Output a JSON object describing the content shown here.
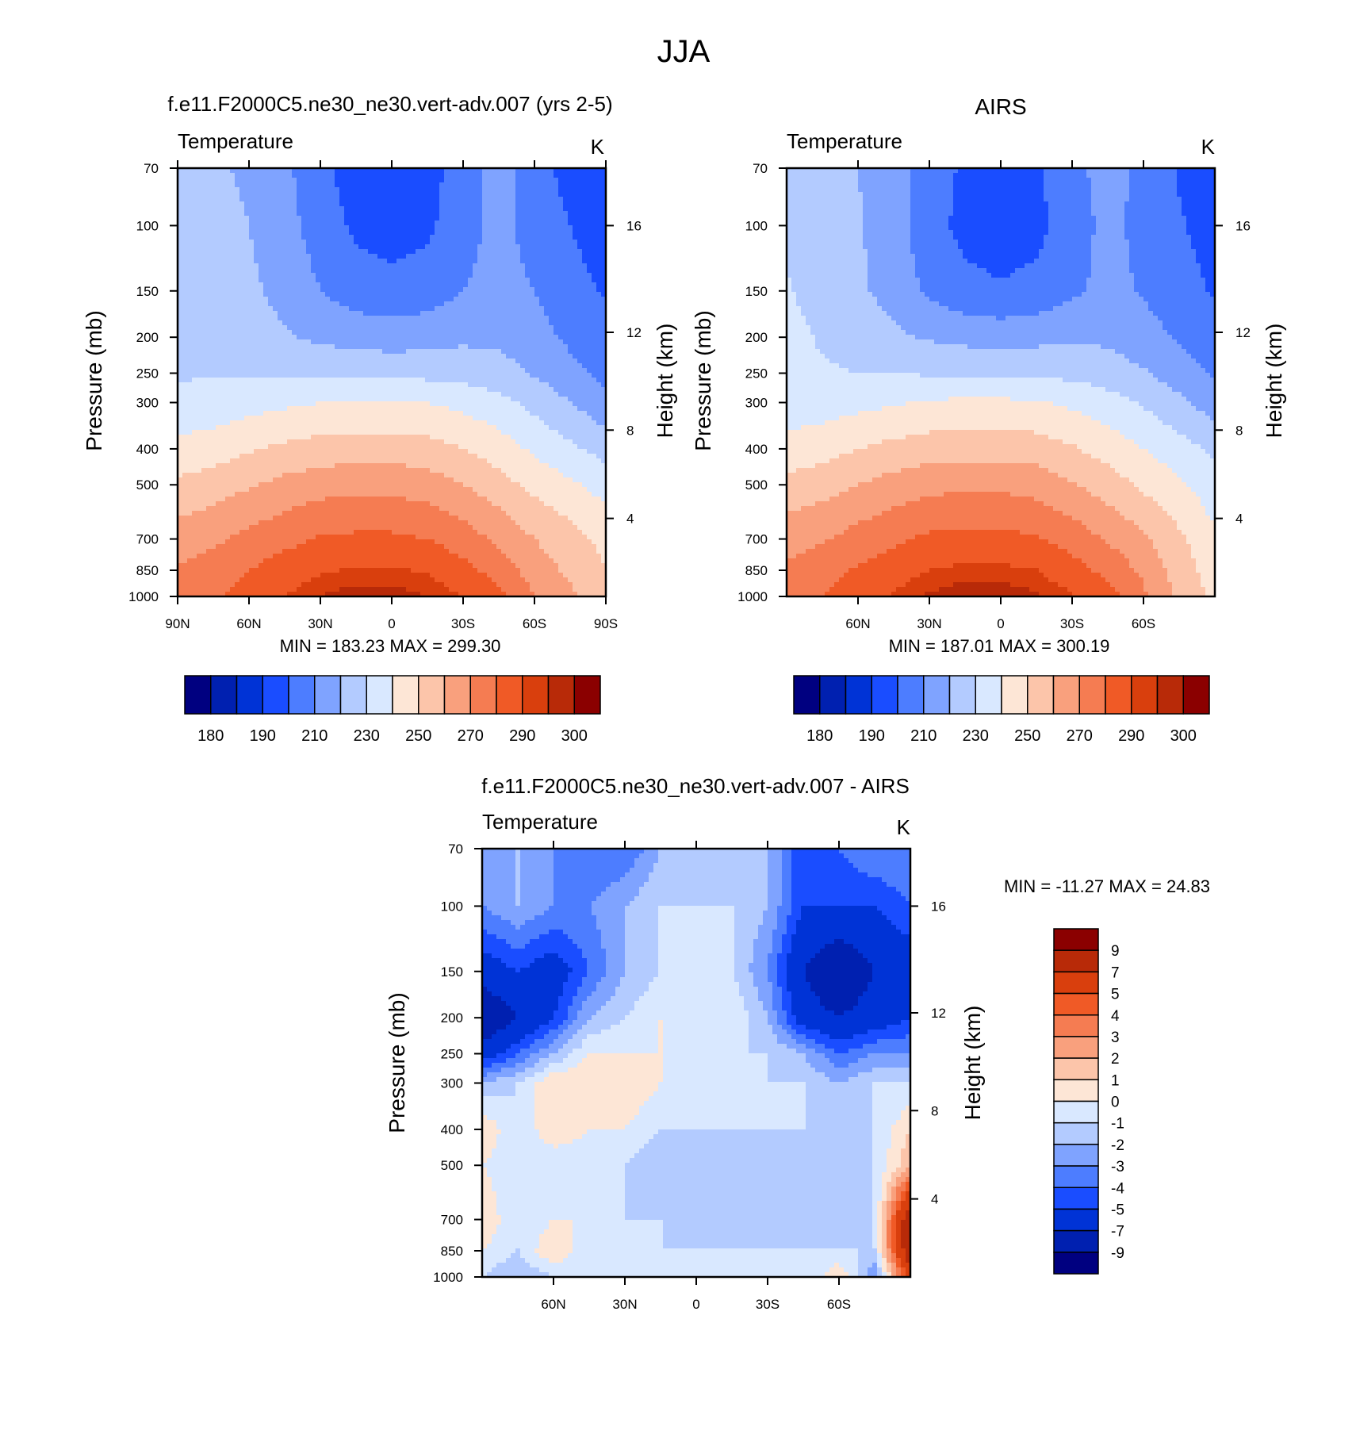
{
  "title": "JJA",
  "colors": {
    "palette16": [
      "#000080",
      "#0020b0",
      "#0033d6",
      "#1a4dff",
      "#4d7dff",
      "#7fa3ff",
      "#b3cbff",
      "#d9e8ff",
      "#fde6d6",
      "#fcc5aa",
      "#f9a07d",
      "#f57c52",
      "#f05a26",
      "#d93f0d",
      "#b82a08",
      "#8b0000"
    ],
    "diff_palette": [
      "#000080",
      "#0020b0",
      "#0033d6",
      "#1a4dff",
      "#4d7dff",
      "#7fa3ff",
      "#b3cbff",
      "#d9e8ff",
      "#fde6d6",
      "#fcc5aa",
      "#f9a07d",
      "#f57c52",
      "#f05a26",
      "#d93f0d",
      "#b82a08",
      "#8b0000"
    ]
  },
  "chart_data": [
    {
      "type": "heatmap",
      "title": "f.e11.F2000C5.ne30_ne30.vert-adv.007 (yrs 2-5)",
      "left_label": "Temperature",
      "units": "K",
      "ylabel": "Pressure (mb)",
      "ylabel_right": "Height (km)",
      "x_ticks": [
        "90N",
        "60N",
        "30N",
        "0",
        "30S",
        "60S",
        "90S"
      ],
      "y_ticks": [
        "70",
        "100",
        "150",
        "200",
        "250",
        "300",
        "400",
        "500",
        "700",
        "850",
        "1000"
      ],
      "y_right_ticks": [
        "16",
        "12",
        "8",
        "4"
      ],
      "stats": "MIN = 183.23  MAX = 299.30",
      "colorbar_labels": [
        "180",
        "190",
        "210",
        "230",
        "250",
        "270",
        "290",
        "300"
      ],
      "lat_range": [
        90,
        -90
      ],
      "pressure_levels": [
        70,
        100,
        150,
        200,
        250,
        300,
        400,
        500,
        700,
        850,
        1000
      ],
      "lat_samples": [
        90,
        75,
        60,
        45,
        30,
        15,
        0,
        -15,
        -30,
        -45,
        -60,
        -75,
        -90
      ],
      "approx_temperature_rows": [
        [
          225,
          222,
          218,
          212,
          203,
          195,
          194,
          196,
          205,
          214,
          205,
          196,
          190
        ],
        [
          226,
          224,
          220,
          214,
          205,
          198,
          196,
          198,
          206,
          213,
          206,
          200,
          194
        ],
        [
          225,
          224,
          222,
          217,
          210,
          205,
          203,
          205,
          210,
          214,
          210,
          204,
          199
        ],
        [
          226,
          226,
          224,
          221,
          218,
          216,
          215,
          216,
          218,
          218,
          214,
          208,
          203
        ],
        [
          229,
          229,
          229,
          229,
          228,
          228,
          227,
          227,
          226,
          224,
          219,
          213,
          207
        ],
        [
          233,
          234,
          236,
          238,
          240,
          241,
          241,
          240,
          237,
          233,
          227,
          220,
          213
        ],
        [
          243,
          245,
          249,
          252,
          254,
          255,
          255,
          254,
          250,
          245,
          238,
          232,
          226
        ],
        [
          252,
          255,
          259,
          263,
          266,
          267,
          267,
          265,
          260,
          254,
          247,
          242,
          236
        ],
        [
          265,
          268,
          273,
          277,
          281,
          282,
          282,
          280,
          275,
          268,
          260,
          254,
          247
        ],
        [
          271,
          275,
          280,
          285,
          289,
          291,
          291,
          289,
          283,
          276,
          265,
          258,
          250
        ],
        [
          274,
          279,
          284,
          290,
          295,
          298,
          298,
          295,
          290,
          283,
          270,
          262,
          252
        ]
      ]
    },
    {
      "type": "heatmap",
      "title": "AIRS",
      "left_label": "Temperature",
      "units": "K",
      "ylabel": "Pressure (mb)",
      "ylabel_right": "Height (km)",
      "x_ticks": [
        "60N",
        "30N",
        "0",
        "30S",
        "60S"
      ],
      "y_ticks": [
        "70",
        "100",
        "150",
        "200",
        "250",
        "300",
        "400",
        "500",
        "700",
        "850",
        "1000"
      ],
      "y_right_ticks": [
        "16",
        "12",
        "8",
        "4"
      ],
      "stats": "MIN = 187.01  MAX = 300.19",
      "colorbar_labels": [
        "180",
        "190",
        "210",
        "230",
        "250",
        "270",
        "290",
        "300"
      ],
      "lat_range": [
        90,
        -90
      ],
      "pressure_levels": [
        70,
        100,
        150,
        200,
        250,
        300,
        400,
        500,
        700,
        850,
        1000
      ],
      "lat_samples": [
        90,
        75,
        60,
        45,
        30,
        15,
        0,
        -15,
        -30,
        -45,
        -60,
        -75,
        -90
      ],
      "approx_temperature_rows": [
        [
          226,
          224,
          220,
          214,
          206,
          198,
          196,
          199,
          207,
          214,
          207,
          199,
          193
        ],
        [
          228,
          225,
          221,
          214,
          204,
          197,
          195,
          197,
          205,
          213,
          207,
          201,
          196
        ],
        [
          231,
          226,
          222,
          216,
          208,
          203,
          201,
          203,
          208,
          213,
          209,
          204,
          199
        ],
        [
          233,
          229,
          226,
          222,
          219,
          217,
          216,
          217,
          219,
          218,
          214,
          209,
          204
        ],
        [
          232,
          231,
          230,
          230,
          229,
          229,
          228,
          228,
          227,
          225,
          221,
          215,
          209
        ],
        [
          234,
          235,
          237,
          239,
          241,
          242,
          242,
          241,
          238,
          234,
          229,
          222,
          215
        ],
        [
          244,
          246,
          250,
          253,
          255,
          256,
          256,
          255,
          251,
          246,
          240,
          234,
          228
        ],
        [
          253,
          256,
          260,
          264,
          267,
          268,
          268,
          266,
          261,
          255,
          248,
          242,
          234
        ],
        [
          266,
          269,
          274,
          278,
          282,
          283,
          283,
          281,
          276,
          269,
          262,
          252,
          242
        ],
        [
          272,
          276,
          281,
          286,
          290,
          292,
          292,
          290,
          284,
          277,
          268,
          255,
          245
        ],
        [
          275,
          280,
          285,
          291,
          296,
          299,
          299,
          296,
          291,
          284,
          272,
          258,
          248
        ]
      ]
    },
    {
      "type": "heatmap",
      "title": "f.e11.F2000C5.ne30_ne30.vert-adv.007 - AIRS",
      "left_label": "Temperature",
      "units": "K",
      "ylabel": "Pressure (mb)",
      "ylabel_right": "Height (km)",
      "x_ticks": [
        "60N",
        "30N",
        "0",
        "30S",
        "60S"
      ],
      "y_ticks": [
        "70",
        "100",
        "150",
        "200",
        "250",
        "300",
        "400",
        "500",
        "700",
        "850",
        "1000"
      ],
      "y_right_ticks": [
        "16",
        "12",
        "8",
        "4"
      ],
      "stats": "MIN = -11.27  MAX =  24.83",
      "colorbar_labels": [
        "9",
        "7",
        "5",
        "4",
        "3",
        "2",
        "1",
        "0",
        "-1",
        "-2",
        "-3",
        "-4",
        "-5",
        "-7",
        "-9"
      ],
      "lat_range": [
        90,
        -90
      ],
      "pressure_levels": [
        70,
        100,
        150,
        200,
        250,
        300,
        400,
        500,
        700,
        850,
        1000
      ],
      "lat_samples": [
        90,
        75,
        60,
        45,
        30,
        15,
        0,
        -15,
        -30,
        -45,
        -60,
        -75,
        -90
      ],
      "approx_difference_rows": [
        [
          -2,
          -2,
          -3,
          -4,
          -4,
          -2,
          -2,
          -2,
          -2,
          -5,
          -4,
          -3,
          -3
        ],
        [
          -3,
          -2,
          -3,
          -3,
          -2,
          -1,
          -1,
          -1,
          -2,
          -5,
          -5,
          -5,
          -4
        ],
        [
          -6,
          -5,
          -6,
          -4,
          -2,
          -1,
          -1,
          -1,
          -3,
          -7,
          -9,
          -7,
          -6
        ],
        [
          -9,
          -7,
          -5,
          -2,
          -1,
          0,
          0,
          0,
          -2,
          -6,
          -7,
          -6,
          -5
        ],
        [
          -6,
          -4,
          -2,
          0,
          0,
          0,
          -1,
          -1,
          -1,
          -2,
          -4,
          -3,
          -3
        ],
        [
          -2,
          -1,
          1,
          1,
          1,
          0,
          -1,
          -1,
          -1,
          -1,
          -2,
          -1,
          -1
        ],
        [
          1,
          -1,
          1,
          0,
          0,
          -1,
          -1,
          -1,
          -1,
          -1,
          -1,
          -1,
          1
        ],
        [
          0,
          -1,
          -1,
          -1,
          -1,
          -2,
          -2,
          -2,
          -2,
          -2,
          -2,
          -1,
          2
        ],
        [
          1,
          -1,
          0,
          0,
          -1,
          -1,
          -2,
          -2,
          -2,
          -2,
          -2,
          -1,
          9
        ],
        [
          0,
          -1,
          1,
          -1,
          -1,
          -1,
          -1,
          -1,
          -1,
          -1,
          -1,
          -1,
          9
        ],
        [
          -1,
          -2,
          -1,
          -1,
          -1,
          0,
          0,
          0,
          -1,
          -1,
          1,
          -3,
          6
        ]
      ]
    }
  ]
}
